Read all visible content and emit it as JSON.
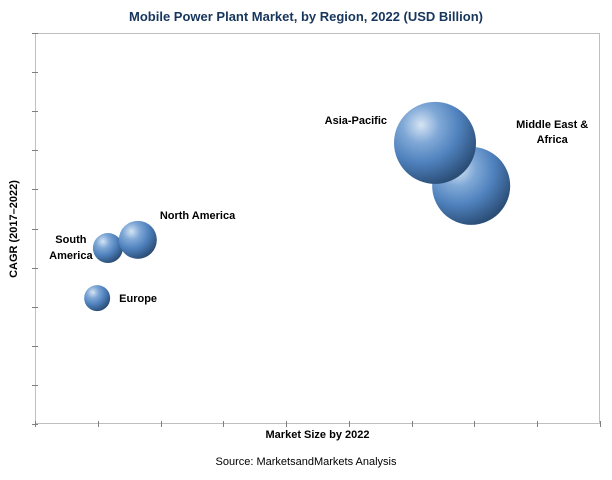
{
  "chart_data": {
    "type": "scatter",
    "subtype": "bubble",
    "title": "Mobile Power Plant Market, by Region, 2022 (USD Billion)",
    "xlabel": "Market Size by 2022",
    "ylabel": "CAGR (2017–2022)",
    "source": "Source: MarketsandMarkets Analysis",
    "legend": "none",
    "grid": false,
    "tick_labels_visible": false,
    "note": "Axis tick labels are not shown in the figure; point coordinates are relative fractions (0-1) of the plot area, bubble size in pixels reflects relative market size.",
    "axes": {
      "x_tick_intervals": 9,
      "y_tick_intervals": 10
    },
    "points": [
      {
        "name": "Asia-Pacific",
        "label_lines": [
          "Asia-Pacific"
        ],
        "x_rel": 0.708,
        "y_rel": 0.719,
        "radius_px": 41,
        "label_placement": "left-top"
      },
      {
        "name": "Middle East & Africa",
        "label_lines": [
          "Middle East &",
          "Africa"
        ],
        "x_rel": 0.772,
        "y_rel": 0.609,
        "radius_px": 39,
        "label_placement": "right-top-centered"
      },
      {
        "name": "North America",
        "label_lines": [
          "North America"
        ],
        "x_rel": 0.182,
        "y_rel": 0.471,
        "radius_px": 19,
        "label_placement": "above-right"
      },
      {
        "name": "South America",
        "label_lines": [
          "South",
          "America"
        ],
        "x_rel": 0.129,
        "y_rel": 0.45,
        "radius_px": 15,
        "label_placement": "left-centered"
      },
      {
        "name": "Europe",
        "label_lines": [
          "Europe"
        ],
        "x_rel": 0.11,
        "y_rel": 0.322,
        "radius_px": 13,
        "label_placement": "right-middle"
      }
    ],
    "draw_order": [
      "Middle East & Africa",
      "Asia-Pacific",
      "South America",
      "North America",
      "Europe"
    ],
    "colors": {
      "bubble_base": "#4F81BD",
      "bubble_highlight": "#D6E4F4",
      "bubble_rim": "#2B4E77",
      "plot_border": "#BFBFBF",
      "tick": "#808080",
      "title": "#17365D"
    }
  }
}
